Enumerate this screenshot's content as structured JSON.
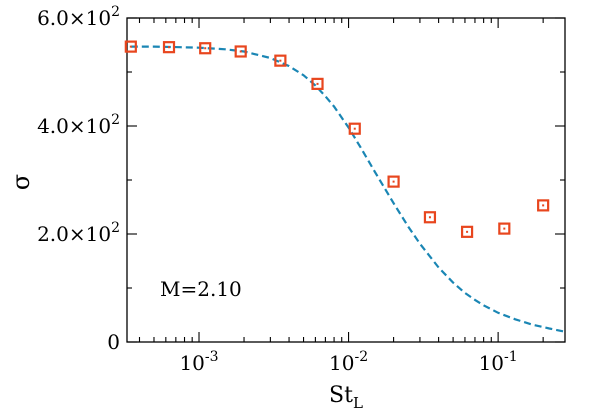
{
  "chart_data": {
    "type": "scatter",
    "xlabel": "St",
    "xlabel_sub": "L",
    "ylabel": "σ",
    "x_scale": "log",
    "xlim": [
      0.00033,
      0.28
    ],
    "ylim": [
      0,
      600
    ],
    "grid": false,
    "legend": "none",
    "annotation": "M=2.10",
    "x_ticks": [
      {
        "value": 0.001,
        "base": "10",
        "exp": "-3"
      },
      {
        "value": 0.01,
        "base": "10",
        "exp": "-2"
      },
      {
        "value": 0.1,
        "base": "10",
        "exp": "-1"
      }
    ],
    "y_ticks": [
      {
        "value": 0,
        "mantissa": "0",
        "exp": ""
      },
      {
        "value": 200,
        "mantissa": "2.0×10",
        "exp": "2"
      },
      {
        "value": 400,
        "mantissa": "4.0×10",
        "exp": "2"
      },
      {
        "value": 600,
        "mantissa": "6.0×10",
        "exp": "2"
      }
    ],
    "series": [
      {
        "kind": "markers",
        "marker": "square",
        "color": "#e8461e",
        "x": [
          0.00035,
          0.00063,
          0.0011,
          0.0019,
          0.0035,
          0.0062,
          0.011,
          0.02,
          0.035,
          0.062,
          0.11,
          0.2
        ],
        "y": [
          547,
          546,
          544,
          538,
          521,
          478,
          395,
          297,
          231,
          204,
          210,
          253
        ]
      },
      {
        "kind": "line",
        "style": "dashed",
        "color": "#1a86b4",
        "x": [
          0.00035,
          0.0005,
          0.00075,
          0.001,
          0.0015,
          0.002,
          0.003,
          0.004,
          0.005,
          0.006,
          0.007,
          0.008,
          0.01,
          0.012,
          0.015,
          0.02,
          0.025,
          0.03,
          0.04,
          0.05,
          0.06,
          0.07,
          0.08,
          0.1,
          0.13,
          0.17,
          0.22,
          0.28
        ],
        "y": [
          547,
          547,
          546,
          545,
          542,
          538,
          526,
          511,
          494,
          475,
          455,
          436,
          397,
          361,
          315,
          257,
          214,
          182,
          138,
          110,
          91,
          78,
          68,
          54,
          42,
          32,
          25,
          19
        ]
      }
    ]
  }
}
